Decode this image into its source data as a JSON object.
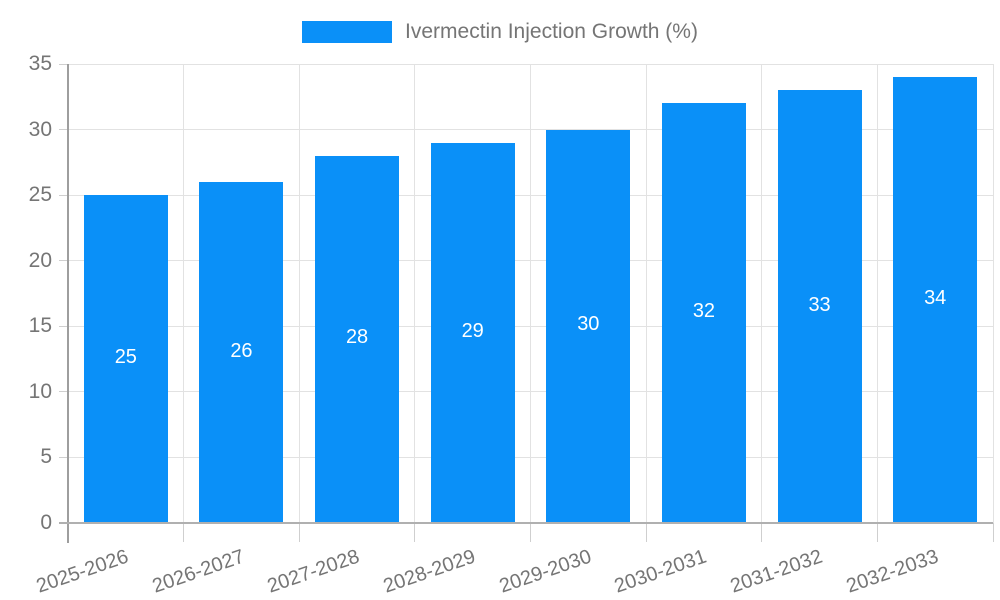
{
  "chart_data": {
    "type": "bar",
    "title": "",
    "legend": {
      "position": "top",
      "label": "Ivermectin Injection Growth (%)"
    },
    "categories": [
      "2025-2026",
      "2026-2027",
      "2027-2028",
      "2028-2029",
      "2029-2030",
      "2030-2031",
      "2031-2032",
      "2032-2033"
    ],
    "values": [
      25,
      26,
      28,
      29,
      30,
      32,
      33,
      34
    ],
    "xlabel": "",
    "ylabel": "",
    "ylim": [
      0,
      35
    ],
    "yticks": [
      0,
      5,
      10,
      15,
      20,
      25,
      30,
      35
    ],
    "grid": "horizontal-and-vertical",
    "value_labels": "inside-bar-middle",
    "colors": {
      "bar": "#0a90f8",
      "value_label": "#ffffff",
      "axis_text": "#757575",
      "gridline": "#e2e2e2",
      "axis_line": "#9e9e9e",
      "baseline": "#b0b0b0",
      "tick": "#cfcfcf",
      "background": "#ffffff"
    }
  }
}
